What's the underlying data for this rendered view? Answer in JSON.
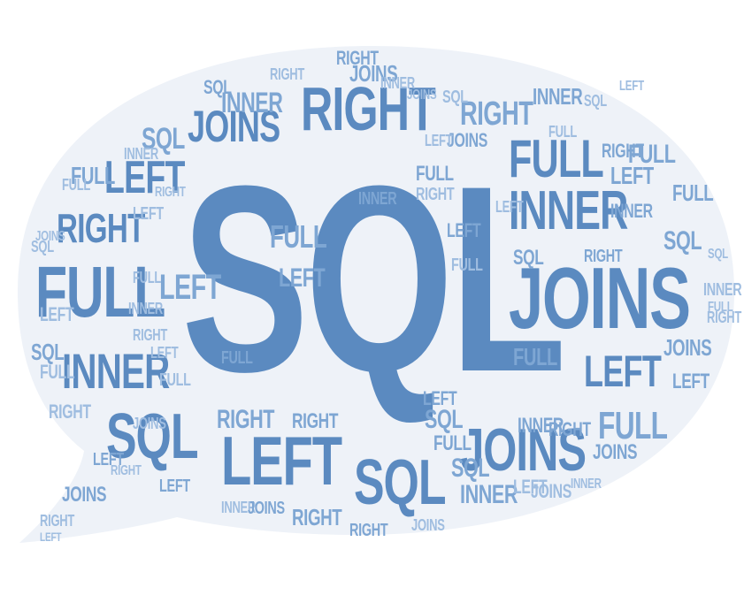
{
  "colors": {
    "background": "#ffffff",
    "bubble_fill": "#eef2f8",
    "primary": "#5b8ac0",
    "light": "#7ea6d3",
    "pale": "#9fbde0"
  },
  "words": {
    "sql": "SQL",
    "joins": "JOINS",
    "right": "RIGHT",
    "left": "LEFT",
    "full": "FULL",
    "inner": "INNER"
  }
}
